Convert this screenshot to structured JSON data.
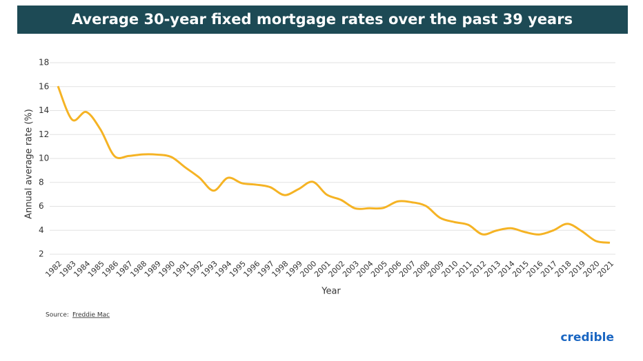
{
  "chart_data": {
    "type": "line",
    "title": "Average 30-year fixed mortgage rates over the past 39 years",
    "x_label": "Year",
    "y_label": "Annual average rate (%)",
    "categories": [
      "1982",
      "1983",
      "1984",
      "1985",
      "1986",
      "1987",
      "1988",
      "1989",
      "1990",
      "1991",
      "1992",
      "1993",
      "1994",
      "1995",
      "1996",
      "1997",
      "1998",
      "1999",
      "2000",
      "2001",
      "2002",
      "2003",
      "2004",
      "2005",
      "2006",
      "2007",
      "2008",
      "2009",
      "2010",
      "2011",
      "2012",
      "2013",
      "2014",
      "2015",
      "2016",
      "2017",
      "2018",
      "2019",
      "2020",
      "2021"
    ],
    "series": [
      {
        "name": "Average 30-year fixed rate",
        "color": "#f5b324",
        "values": [
          16.04,
          13.24,
          13.88,
          12.43,
          10.19,
          10.21,
          10.34,
          10.32,
          10.13,
          9.25,
          8.39,
          7.31,
          8.38,
          7.93,
          7.81,
          7.6,
          6.94,
          7.44,
          8.05,
          6.97,
          6.54,
          5.83,
          5.84,
          5.87,
          6.41,
          6.34,
          6.03,
          5.04,
          4.69,
          4.45,
          3.66,
          3.98,
          4.17,
          3.85,
          3.65,
          3.99,
          4.54,
          3.94,
          3.11,
          2.96
        ]
      }
    ],
    "ylim": [
      2,
      18
    ],
    "yticks": [
      2,
      4,
      6,
      8,
      10,
      12,
      14,
      16,
      18
    ],
    "grid": true,
    "source_prefix": "Source:",
    "source_name": "Freddie Mac",
    "logo": "credible"
  }
}
